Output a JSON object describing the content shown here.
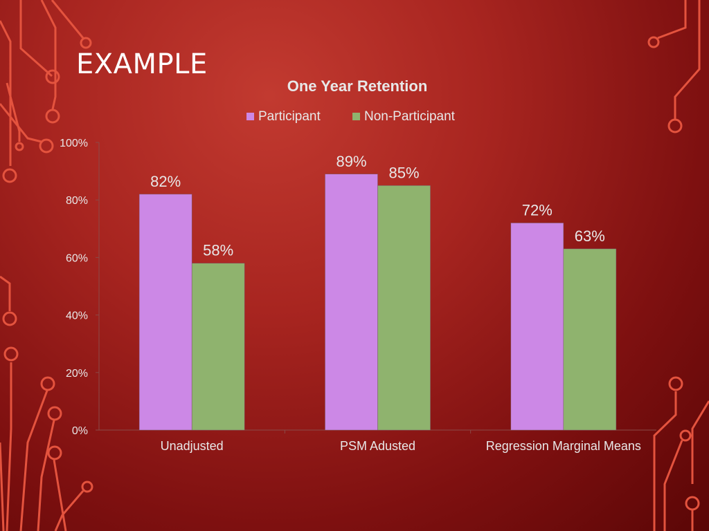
{
  "slide": {
    "title": "EXAMPLE"
  },
  "colors": {
    "participant": "#cc88e6",
    "non_participant": "#8fb36e",
    "accent_lines": "#e4533e",
    "text": "#ffffff"
  },
  "chart_data": {
    "type": "bar",
    "title": "One Year Retention",
    "xlabel": "",
    "ylabel": "",
    "categories": [
      "Unadjusted",
      "PSM Adusted",
      "Regression Marginal Means"
    ],
    "series": [
      {
        "name": "Participant",
        "values": [
          82,
          89,
          72
        ],
        "labels": [
          "82%",
          "89%",
          "72%"
        ]
      },
      {
        "name": "Non-Participant",
        "values": [
          58,
          85,
          63
        ],
        "labels": [
          "58%",
          "85%",
          "63%"
        ]
      }
    ],
    "ylim": [
      0,
      100
    ],
    "yticks": [
      0,
      20,
      40,
      60,
      80,
      100
    ],
    "ytick_labels": [
      "0%",
      "20%",
      "40%",
      "60%",
      "80%",
      "100%"
    ],
    "grid": false,
    "legend_position": "top"
  }
}
